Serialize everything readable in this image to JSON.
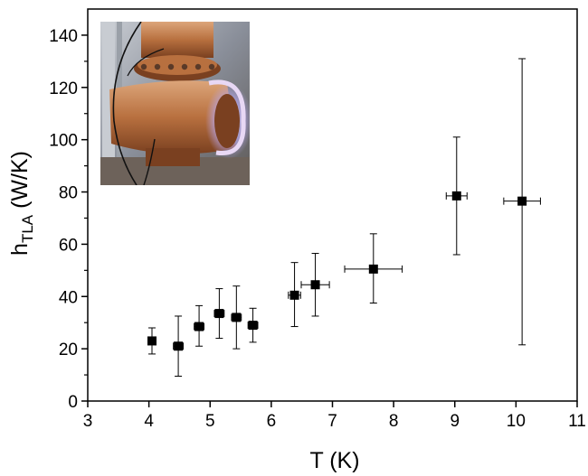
{
  "chart_data": {
    "type": "scatter",
    "title": "",
    "xlabel": "T (K)",
    "ylabel_main": "h",
    "ylabel_sub": "TLA",
    "ylabel_unit": " (W/K)",
    "xlim": [
      3,
      11
    ],
    "ylim": [
      0,
      150
    ],
    "xticks": [
      "3",
      "4",
      "5",
      "6",
      "7",
      "8",
      "9",
      "10",
      "11"
    ],
    "yticks": [
      "0",
      "20",
      "40",
      "60",
      "80",
      "100",
      "120",
      "140"
    ],
    "grid": false,
    "legend": "none",
    "marker": "square",
    "color": "#000000",
    "points": [
      {
        "x": 4.05,
        "y": 23,
        "xerr": 0.03,
        "yerr_low": 18,
        "yerr_high": 28
      },
      {
        "x": 4.48,
        "y": 21,
        "xerr": 0.08,
        "yerr_low": 9.5,
        "yerr_high": 32.5
      },
      {
        "x": 4.82,
        "y": 28.5,
        "xerr": 0.08,
        "yerr_low": 21,
        "yerr_high": 36.5
      },
      {
        "x": 5.15,
        "y": 33.5,
        "xerr": 0.08,
        "yerr_low": 24,
        "yerr_high": 43
      },
      {
        "x": 5.43,
        "y": 32,
        "xerr": 0.08,
        "yerr_low": 20,
        "yerr_high": 44
      },
      {
        "x": 5.7,
        "y": 29,
        "xerr": 0.08,
        "yerr_low": 22.5,
        "yerr_high": 35.5
      },
      {
        "x": 6.38,
        "y": 40.5,
        "xerr": 0.1,
        "yerr_low": 28.5,
        "yerr_high": 53
      },
      {
        "x": 6.72,
        "y": 44.5,
        "xerr": 0.23,
        "yerr_low": 32.5,
        "yerr_high": 56.5
      },
      {
        "x": 7.67,
        "y": 50.5,
        "xerr": 0.47,
        "yerr_low": 37.5,
        "yerr_high": 64
      },
      {
        "x": 9.03,
        "y": 78.5,
        "xerr": 0.17,
        "yerr_low": 56,
        "yerr_high": 101
      },
      {
        "x": 10.1,
        "y": 76.5,
        "xerr": 0.3,
        "yerr_low": 21.5,
        "yerr_high": 131
      }
    ]
  },
  "inset": {
    "description": "photo-inset",
    "colors": {
      "background": "#8a8f9a",
      "copper": "#b8703f",
      "copper_dark": "#7a4020",
      "copper_light": "#dca57a",
      "glow": "#b8a8f0",
      "frame": "#c8ccd2"
    }
  }
}
